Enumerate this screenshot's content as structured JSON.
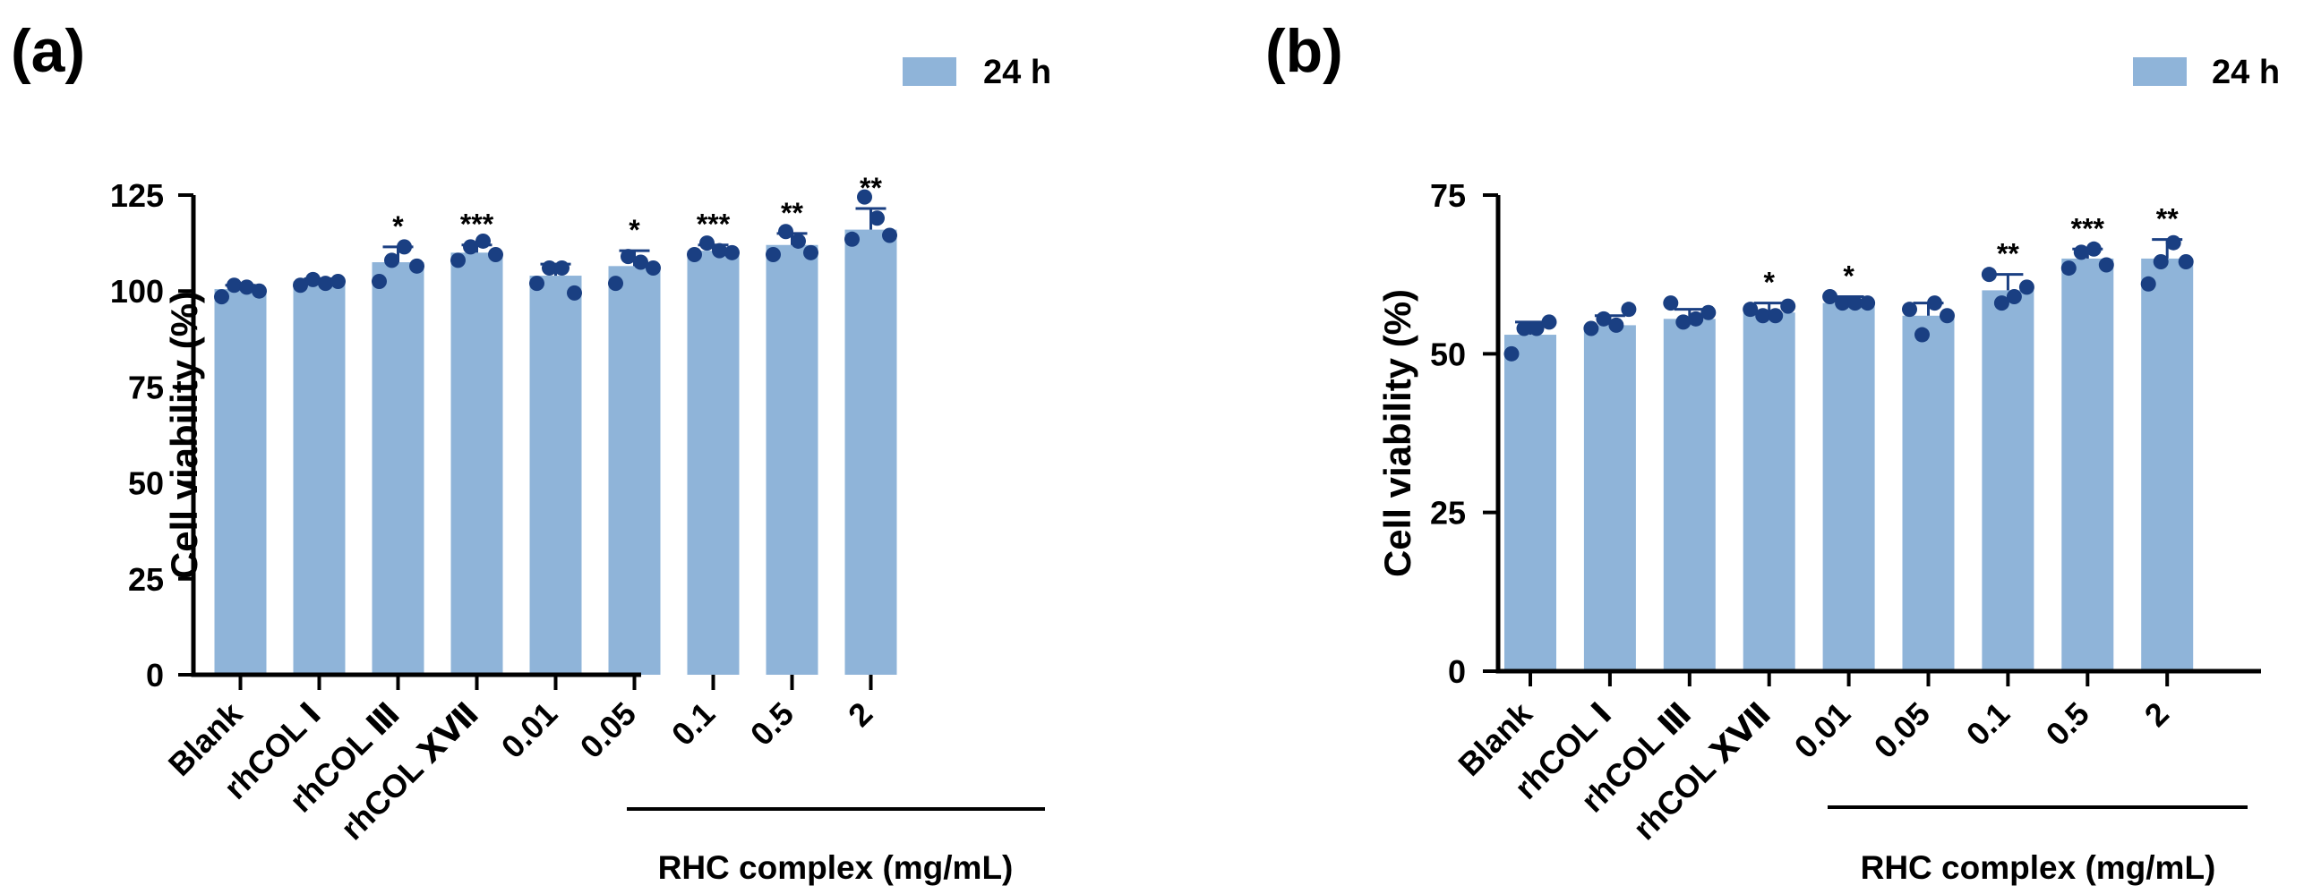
{
  "colors": {
    "bar": "#8fb4d9",
    "dot": "#1a3f82",
    "axis": "#000000"
  },
  "chart_data": [
    {
      "panel_label": "(a)",
      "type": "bar",
      "categories": [
        "Blank",
        "rhCOL Ⅰ",
        "rhCOL Ⅲ",
        "rhCOL ⅩⅦ",
        "0.01",
        "0.05",
        "0.1",
        "0.5",
        "2"
      ],
      "series": [
        {
          "name": "24 h",
          "values": [
            100.5,
            102.5,
            107.5,
            110,
            104,
            106.5,
            110.5,
            112,
            116
          ],
          "error": [
            1,
            0.7,
            4,
            2,
            3,
            4,
            1.5,
            3,
            5.5
          ],
          "points": [
            [
              98.5,
              101.5,
              101,
              100
            ],
            [
              101.5,
              103,
              102,
              102.5
            ],
            [
              102.5,
              108,
              111.5,
              106.5
            ],
            [
              108,
              111.5,
              113,
              109.5
            ],
            [
              102,
              106,
              106,
              99.5
            ],
            [
              102,
              109,
              107.5,
              106
            ],
            [
              109.5,
              112.5,
              110.5,
              110
            ],
            [
              109.5,
              115.5,
              113,
              110
            ],
            [
              113.5,
              124.5,
              119,
              114.5
            ]
          ],
          "significance": [
            "",
            "",
            "*",
            "***",
            "",
            "*",
            "***",
            "**",
            "**"
          ]
        }
      ],
      "ylabel": "Cell viability (%)",
      "ylim": [
        0,
        125
      ],
      "yticks": [
        "0",
        "25",
        "50",
        "75",
        "100",
        "125"
      ],
      "group_label": "RHC complex (mg/mL)",
      "grid": false,
      "legend_position": "top-right"
    },
    {
      "panel_label": "(b)",
      "type": "bar",
      "categories": [
        "Blank",
        "rhCOL Ⅰ",
        "rhCOL Ⅲ",
        "rhCOL ⅩⅦ",
        "0.01",
        "0.05",
        "0.1",
        "0.5",
        "2"
      ],
      "series": [
        {
          "name": "24 h",
          "values": [
            53,
            54.5,
            55.5,
            56.5,
            58,
            56,
            60,
            65,
            65
          ],
          "error": [
            2,
            1.5,
            1.5,
            1.5,
            1,
            2,
            2.5,
            1.5,
            3
          ],
          "points": [
            [
              50,
              54,
              54,
              55
            ],
            [
              54,
              55.5,
              54.5,
              57
            ],
            [
              58,
              55,
              55.5,
              56.5
            ],
            [
              57,
              56,
              56,
              57.5
            ],
            [
              59,
              58,
              58,
              58
            ],
            [
              57,
              53,
              58,
              56
            ],
            [
              62.5,
              58,
              59,
              60.5
            ],
            [
              63.5,
              66,
              66.5,
              64
            ],
            [
              61,
              64.5,
              67.5,
              64.5
            ]
          ],
          "significance": [
            "",
            "",
            "",
            "*",
            "*",
            "",
            "**",
            "***",
            "**"
          ]
        }
      ],
      "ylabel": "Cell viability (%)",
      "ylim": [
        0,
        75
      ],
      "yticks": [
        "0",
        "25",
        "50",
        "75"
      ],
      "group_label": "RHC complex (mg/mL)",
      "grid": false,
      "legend_position": "top-right"
    }
  ]
}
